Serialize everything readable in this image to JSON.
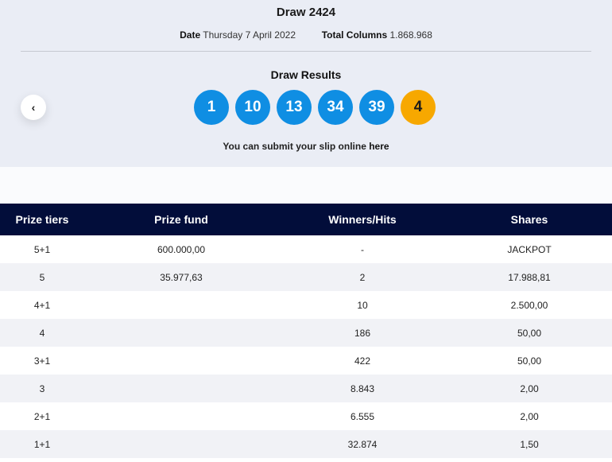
{
  "draw": {
    "title": "Draw 2424",
    "date_label": "Date",
    "date_value": "Thursday 7 April 2022",
    "columns_label": "Total Columns",
    "columns_value": "1.868.968"
  },
  "results": {
    "title": "Draw Results",
    "numbers": [
      "1",
      "10",
      "13",
      "34",
      "39"
    ],
    "bonus": "4",
    "prev_icon": "chevron-left-icon",
    "prev_glyph": "‹",
    "note_text": "You can submit your slip online ",
    "note_link": "here"
  },
  "colors": {
    "ball": "#0f8ee3",
    "bonus_ball": "#f7a800",
    "header_bg": "#020d3a"
  },
  "table": {
    "headers": [
      "Prize tiers",
      "Prize fund",
      "Winners/Hits",
      "Shares"
    ],
    "rows": [
      [
        "5+1",
        "600.000,00",
        "-",
        "JACKPOT"
      ],
      [
        "5",
        "35.977,63",
        "2",
        "17.988,81"
      ],
      [
        "4+1",
        "",
        "10",
        "2.500,00"
      ],
      [
        "4",
        "",
        "186",
        "50,00"
      ],
      [
        "3+1",
        "",
        "422",
        "50,00"
      ],
      [
        "3",
        "",
        "8.843",
        "2,00"
      ],
      [
        "2+1",
        "",
        "6.555",
        "2,00"
      ],
      [
        "1+1",
        "",
        "32.874",
        "1,50"
      ]
    ]
  }
}
